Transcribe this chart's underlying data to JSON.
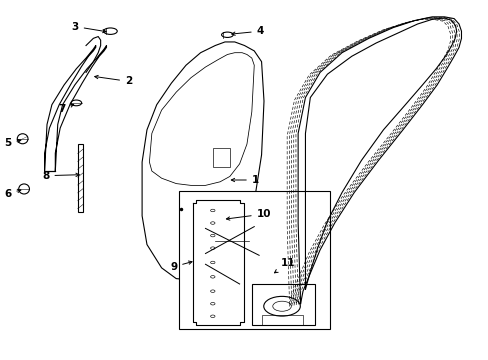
{
  "background_color": "#ffffff",
  "line_color": "#000000",
  "label_color": "#000000",
  "lw": 0.8
}
